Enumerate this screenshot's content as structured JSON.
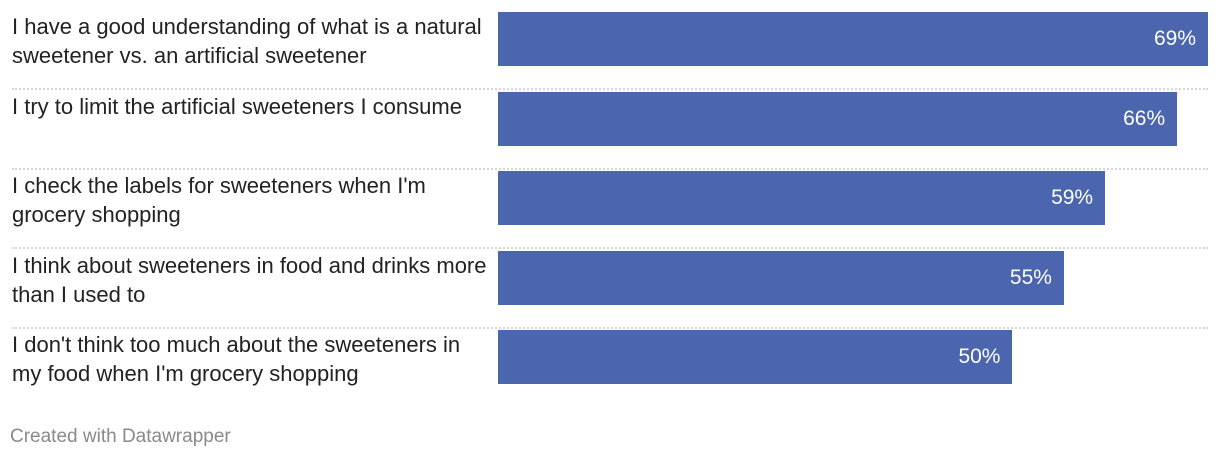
{
  "chart_data": {
    "type": "bar",
    "orientation": "horizontal",
    "categories": [
      "I have a good understanding of what is a natural sweetener vs. an artificial sweetener",
      "I try to limit the artificial sweeteners I consume",
      "I check the labels for sweeteners when I'm grocery shopping",
      "I think about sweeteners in food and drinks more than I used to",
      "I don't think too much about the sweeteners in my food when I'm grocery shopping"
    ],
    "values": [
      69,
      66,
      59,
      55,
      50
    ],
    "value_labels": [
      "69%",
      "66%",
      "59%",
      "55%",
      "50%"
    ],
    "value_max": 69,
    "bar_color": "#4b65ae",
    "value_label_color": "#ffffff",
    "grid": false
  },
  "footer": {
    "credit": "Created with Datawrapper"
  }
}
